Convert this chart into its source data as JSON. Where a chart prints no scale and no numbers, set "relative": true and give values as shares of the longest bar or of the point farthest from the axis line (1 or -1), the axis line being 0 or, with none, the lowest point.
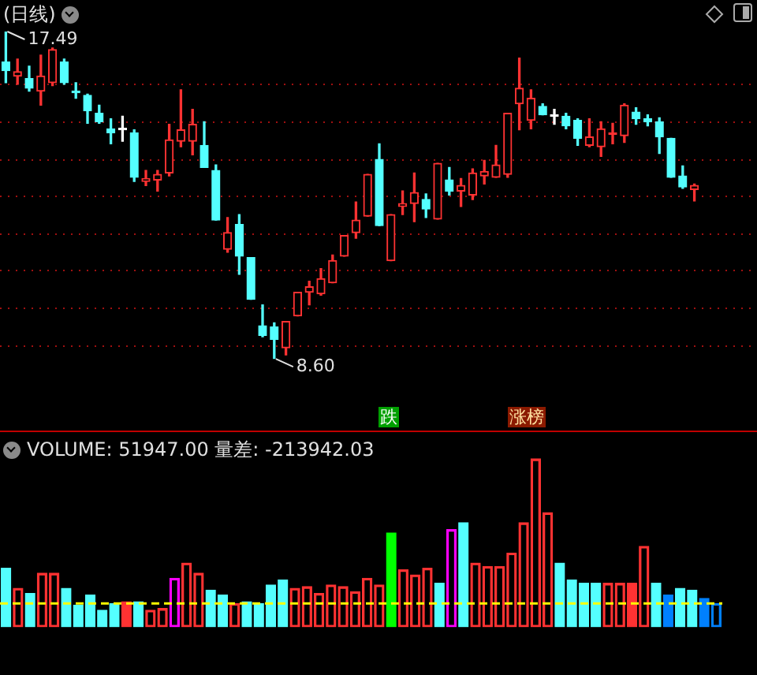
{
  "chart_data": [
    {
      "type": "candlestick",
      "title": "(日线)",
      "categories": [
        null,
        null,
        null,
        null,
        null,
        null,
        null,
        null,
        null,
        null,
        null,
        null,
        null,
        null,
        null,
        null,
        null,
        null,
        null,
        null,
        null,
        null,
        null,
        null,
        null,
        null,
        null,
        null,
        null,
        null,
        null,
        null,
        null,
        null,
        null,
        null,
        null,
        null,
        null,
        null,
        null,
        null,
        null,
        null,
        null,
        null,
        null,
        null,
        null,
        null,
        null,
        null,
        null,
        null,
        null,
        null,
        null,
        null,
        null,
        null
      ],
      "ohlc": [
        [
          16.66,
          17.49,
          16.1,
          16.43
        ],
        [
          16.28,
          16.74,
          16.06,
          16.4
        ],
        [
          16.21,
          16.55,
          15.87,
          15.95
        ],
        [
          15.87,
          16.85,
          15.49,
          16.28
        ],
        [
          16.1,
          17.04,
          16.02,
          17.0
        ],
        [
          16.66,
          16.74,
          16.06,
          16.1
        ],
        [
          15.87,
          16.1,
          15.68,
          15.83
        ],
        [
          15.76,
          15.79,
          15.0,
          15.34
        ],
        [
          15.27,
          15.49,
          15.0,
          15.04
        ],
        [
          14.85,
          15.12,
          14.44,
          14.74
        ],
        [
          14.82,
          15.19,
          14.51,
          14.82
        ],
        [
          14.74,
          14.82,
          13.42,
          13.53
        ],
        [
          13.42,
          13.72,
          13.31,
          13.5
        ],
        [
          13.46,
          13.72,
          13.16,
          13.61
        ],
        [
          13.65,
          14.97,
          13.57,
          14.55
        ],
        [
          14.51,
          15.91,
          14.36,
          14.82
        ],
        [
          14.51,
          15.38,
          14.14,
          14.97
        ],
        [
          14.4,
          15.04,
          13.8,
          13.8
        ],
        [
          13.72,
          13.87,
          12.37,
          12.37
        ],
        [
          11.58,
          12.44,
          11.5,
          12.03
        ],
        [
          12.25,
          12.52,
          10.9,
          11.39
        ],
        [
          11.35,
          11.35,
          10.22,
          10.22
        ],
        [
          9.5,
          10.07,
          9.2,
          9.24
        ],
        [
          9.47,
          9.58,
          8.6,
          9.13
        ],
        [
          8.9,
          9.62,
          8.71,
          9.62
        ],
        [
          9.77,
          10.41,
          9.77,
          10.41
        ],
        [
          10.41,
          10.71,
          10.07,
          10.56
        ],
        [
          10.37,
          11.05,
          10.33,
          10.78
        ],
        [
          10.67,
          11.42,
          10.67,
          11.27
        ],
        [
          11.39,
          11.95,
          11.39,
          11.95
        ],
        [
          12.03,
          12.86,
          11.88,
          12.37
        ],
        [
          12.48,
          13.61,
          12.48,
          13.61
        ],
        [
          14.02,
          14.44,
          12.22,
          12.22
        ],
        [
          11.27,
          12.52,
          11.27,
          12.52
        ],
        [
          12.74,
          13.16,
          12.52,
          12.82
        ],
        [
          12.82,
          13.65,
          12.33,
          13.12
        ],
        [
          12.93,
          13.08,
          12.44,
          12.67
        ],
        [
          12.4,
          13.91,
          12.4,
          13.91
        ],
        [
          13.46,
          13.8,
          13.05,
          13.16
        ],
        [
          13.16,
          13.5,
          12.74,
          13.31
        ],
        [
          13.05,
          13.76,
          12.93,
          13.65
        ],
        [
          13.57,
          13.99,
          13.35,
          13.69
        ],
        [
          13.53,
          14.4,
          13.53,
          13.87
        ],
        [
          13.61,
          15.27,
          13.53,
          15.27
        ],
        [
          15.53,
          16.77,
          14.82,
          15.95
        ],
        [
          15.08,
          15.91,
          14.85,
          15.68
        ],
        [
          15.46,
          15.53,
          15.23,
          15.23
        ],
        [
          15.19,
          15.38,
          14.97,
          15.19
        ],
        [
          15.19,
          15.27,
          14.85,
          14.93
        ],
        [
          15.08,
          15.12,
          14.4,
          14.59
        ],
        [
          14.4,
          15.12,
          14.36,
          14.63
        ],
        [
          14.36,
          15.04,
          14.1,
          14.85
        ],
        [
          14.7,
          15.0,
          14.44,
          14.7
        ],
        [
          14.66,
          15.53,
          14.48,
          15.49
        ],
        [
          15.3,
          15.42,
          14.97,
          15.12
        ],
        [
          15.12,
          15.23,
          14.93,
          15.04
        ],
        [
          15.04,
          15.15,
          14.18,
          14.63
        ],
        [
          14.59,
          14.59,
          13.53,
          13.53
        ],
        [
          13.57,
          13.84,
          13.23,
          13.27
        ],
        [
          13.2,
          13.35,
          12.89,
          13.31
        ]
      ],
      "colors": [
        "#54ffff",
        "#ff3232",
        "#54ffff",
        "#ff3232",
        "#ff3232",
        "#54ffff",
        "#54ffff",
        "#54ffff",
        "#54ffff",
        "#54ffff",
        "#ffffff",
        "#54ffff",
        "#ff3232",
        "#ff3232",
        "#ff3232",
        "#ff3232",
        "#ff3232",
        "#54ffff",
        "#54ffff",
        "#ff3232",
        "#54ffff",
        "#54ffff",
        "#54ffff",
        "#54ffff",
        "#ff3232",
        "#ff3232",
        "#ff3232",
        "#ff3232",
        "#ff3232",
        "#ff3232",
        "#ff3232",
        "#ff3232",
        "#54ffff",
        "#ff3232",
        "#ff3232",
        "#ff3232",
        "#54ffff",
        "#ff3232",
        "#54ffff",
        "#ff3232",
        "#ff3232",
        "#ff3232",
        "#ff3232",
        "#ff3232",
        "#ff3232",
        "#ff3232",
        "#54ffff",
        "#ffffff",
        "#54ffff",
        "#54ffff",
        "#ff3232",
        "#ff3232",
        "#ff3232",
        "#ff3232",
        "#54ffff",
        "#54ffff",
        "#54ffff",
        "#54ffff",
        "#54ffff",
        "#ff3232"
      ],
      "yticks": [
        {
          "value": 16.06,
          "label": null
        },
        {
          "value": 15.04,
          "label": null
        },
        {
          "value": 14.02,
          "label": null
        },
        {
          "value": 13.05,
          "label": null
        },
        {
          "value": 12.03,
          "label": null
        },
        {
          "value": 11.01,
          "label": null
        },
        {
          "value": 10.0,
          "label": null
        },
        {
          "value": 8.98,
          "label": null
        }
      ],
      "grid": "y",
      "annotations": [
        "17.49",
        "8.60",
        "跌",
        "涨榜"
      ]
    },
    {
      "type": "bar",
      "title": "VOLUME: 51947.00 量差: -213942.03",
      "relative": true,
      "categories": [
        null,
        null,
        null,
        null,
        null,
        null,
        null,
        null,
        null,
        null,
        null,
        null,
        null,
        null,
        null,
        null,
        null,
        null,
        null,
        null,
        null,
        null,
        null,
        null,
        null,
        null,
        null,
        null,
        null,
        null,
        null,
        null,
        null,
        null,
        null,
        null,
        null,
        null,
        null,
        null,
        null,
        null,
        null,
        null,
        null,
        null,
        null,
        null,
        null,
        null,
        null,
        null,
        null,
        null,
        null,
        null,
        null,
        null,
        null,
        null
      ],
      "values": [
        0.35,
        0.23,
        0.2,
        0.32,
        0.32,
        0.23,
        0.13,
        0.19,
        0.1,
        0.14,
        0.15,
        0.15,
        0.1,
        0.11,
        0.29,
        0.38,
        0.32,
        0.22,
        0.19,
        0.14,
        0.15,
        0.14,
        0.25,
        0.28,
        0.23,
        0.24,
        0.2,
        0.25,
        0.24,
        0.21,
        0.29,
        0.25,
        0.56,
        0.34,
        0.31,
        0.35,
        0.26,
        0.58,
        0.62,
        0.38,
        0.36,
        0.36,
        0.44,
        0.62,
        1,
        0.68,
        0.38,
        0.28,
        0.26,
        0.26,
        0.26,
        0.26,
        0.26,
        0.48,
        0.26,
        0.19,
        0.23,
        0.22,
        0.17,
        0.14
      ],
      "colors": [
        "#54ffff",
        "#ff3232",
        "#54ffff",
        "#ff3232",
        "#ff3232",
        "#54ffff",
        "#54ffff",
        "#54ffff",
        "#54ffff",
        "#54ffff",
        "#ff3232",
        "#54ffff",
        "#ff3232",
        "#ff3232",
        "#ff00ff",
        "#ff3232",
        "#ff3232",
        "#54ffff",
        "#54ffff",
        "#ff3232",
        "#54ffff",
        "#54ffff",
        "#54ffff",
        "#54ffff",
        "#ff3232",
        "#ff3232",
        "#ff3232",
        "#ff3232",
        "#ff3232",
        "#ff3232",
        "#ff3232",
        "#ff3232",
        "#00ff00",
        "#ff3232",
        "#ff3232",
        "#ff3232",
        "#54ffff",
        "#ff00ff",
        "#54ffff",
        "#ff3232",
        "#ff3232",
        "#ff3232",
        "#ff3232",
        "#ff3232",
        "#ff3232",
        "#ff3232",
        "#54ffff",
        "#54ffff",
        "#54ffff",
        "#54ffff",
        "#ff3232",
        "#ff3232",
        "#ff3232",
        "#ff3232",
        "#54ffff",
        "#0080ff",
        "#54ffff",
        "#54ffff",
        "#0080ff",
        "#0080ff"
      ],
      "ref_lines": [
        {
          "axis": "y",
          "value": 0.14,
          "color": "#ffff00",
          "line_style": "dashed"
        }
      ]
    }
  ]
}
